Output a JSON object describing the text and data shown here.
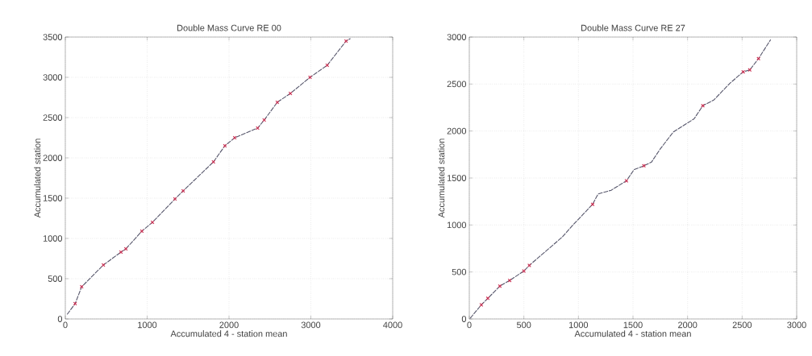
{
  "chart_data": [
    {
      "type": "line",
      "title": "Double Mass Curve RE 00",
      "xlabel": "Accumulated 4 - station mean",
      "ylabel": "Accumulated station",
      "xlim": [
        0,
        4000
      ],
      "ylim": [
        0,
        3500
      ],
      "xticks": [
        0,
        1000,
        2000,
        3000,
        4000
      ],
      "yticks": [
        0,
        500,
        1000,
        1500,
        2000,
        2500,
        3000,
        3500
      ],
      "grid": true,
      "line_style": "dashed",
      "series": [
        {
          "color": "#55556a",
          "marker": "none",
          "x": [
            25,
            120,
            200,
            465,
            680,
            740,
            935,
            1065,
            1340,
            1440,
            1810,
            1950,
            2070,
            2350,
            2430,
            2590,
            2750,
            2990,
            3200,
            3430,
            3480
          ],
          "values": [
            60,
            190,
            400,
            670,
            830,
            870,
            1090,
            1200,
            1490,
            1590,
            1950,
            2150,
            2250,
            2370,
            2470,
            2690,
            2800,
            3000,
            3150,
            3450,
            3480
          ]
        },
        {
          "type": "scatter",
          "marker": "cross",
          "color": "#cc3355",
          "x": [
            120,
            200,
            465,
            680,
            740,
            935,
            1065,
            1340,
            1440,
            1810,
            1950,
            2070,
            2350,
            2430,
            2590,
            2750,
            2990,
            3200,
            3430
          ],
          "values": [
            190,
            400,
            670,
            830,
            870,
            1090,
            1200,
            1490,
            1590,
            1950,
            2150,
            2250,
            2370,
            2470,
            2690,
            2800,
            3000,
            3150,
            3450
          ]
        }
      ]
    },
    {
      "type": "line",
      "title": "Double Mass Curve RE 27",
      "xlabel": "Accumulated 4 - station mean",
      "ylabel": "Accumulated station",
      "xlim": [
        0,
        3000
      ],
      "ylim": [
        0,
        3000
      ],
      "xticks": [
        0,
        500,
        1000,
        1500,
        2000,
        2500,
        3000
      ],
      "yticks": [
        0,
        500,
        1000,
        1500,
        2000,
        2500,
        3000
      ],
      "grid": true,
      "line_style": "dashed",
      "series": [
        {
          "color": "#55556a",
          "marker": "none",
          "x": [
            10,
            110,
            170,
            280,
            370,
            500,
            550,
            850,
            950,
            1130,
            1180,
            1300,
            1440,
            1510,
            1600,
            1670,
            1750,
            1870,
            2060,
            2140,
            2240,
            2390,
            2510,
            2570,
            2650,
            2760
          ],
          "values": [
            10,
            150,
            220,
            350,
            410,
            510,
            570,
            870,
            1000,
            1220,
            1330,
            1370,
            1470,
            1590,
            1630,
            1670,
            1810,
            1990,
            2130,
            2270,
            2330,
            2510,
            2630,
            2650,
            2770,
            2970
          ]
        },
        {
          "type": "scatter",
          "marker": "cross",
          "color": "#cc3355",
          "x": [
            110,
            170,
            280,
            370,
            500,
            550,
            1130,
            1440,
            1600,
            2140,
            2510,
            2570,
            2650
          ],
          "values": [
            150,
            220,
            350,
            410,
            510,
            570,
            1220,
            1470,
            1630,
            2270,
            2630,
            2650,
            2770
          ]
        }
      ]
    }
  ]
}
